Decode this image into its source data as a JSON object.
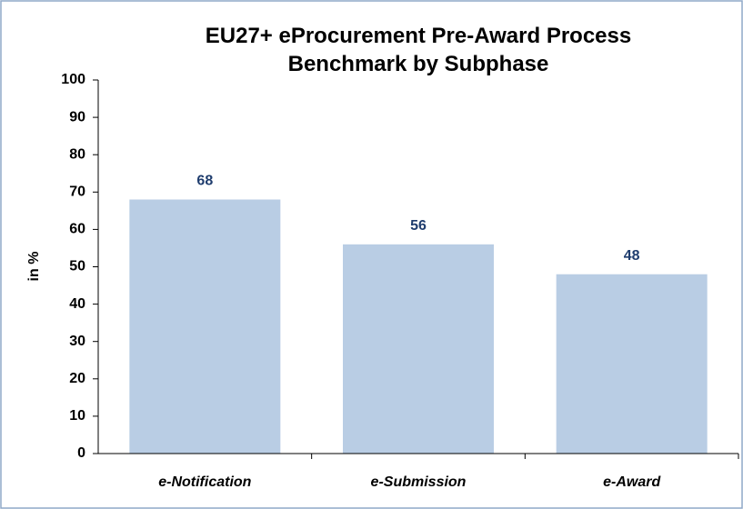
{
  "chart_data": {
    "type": "bar",
    "title": "EU27+ eProcurement Pre-Award Process Benchmark by Subphase",
    "y_label": "in %",
    "categories": [
      "e-Notification",
      "e-Submission",
      "e-Award"
    ],
    "values": [
      68,
      56,
      48
    ],
    "color": "#b9cde4",
    "ylim": [
      0,
      100
    ],
    "yticks": [
      0,
      10,
      20,
      30,
      40,
      50,
      60,
      70,
      80,
      90,
      100
    ],
    "grid": false
  }
}
